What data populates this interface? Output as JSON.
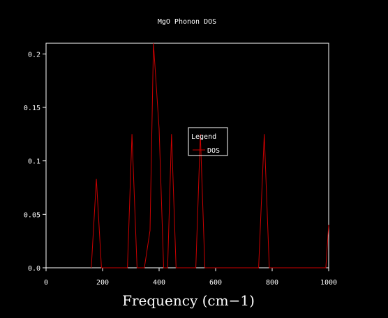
{
  "chart_data": {
    "type": "line",
    "title": "MgO Phonon DOS",
    "xlabel": "Frequency (cm−1)",
    "ylabel": "",
    "xlim": [
      0,
      1000
    ],
    "ylim": [
      0,
      0.21
    ],
    "x_ticks": [
      0,
      200,
      400,
      600,
      800,
      1000
    ],
    "x_tick_labels": [
      "0",
      "200",
      "400",
      "600",
      "800",
      "1000"
    ],
    "y_ticks": [
      0,
      0.05,
      0.1,
      0.15,
      0.2
    ],
    "y_tick_labels": [
      "0.0",
      "0.05",
      "0.1",
      "0.15",
      "0.2"
    ],
    "grid": false,
    "legend": {
      "title": "Legend",
      "position": "center"
    },
    "series": [
      {
        "name": "DOS",
        "color": "#cc0000",
        "points": [
          [
            160,
            0
          ],
          [
            178,
            0.083
          ],
          [
            196,
            0
          ],
          [
            288,
            0
          ],
          [
            304,
            0.125
          ],
          [
            322,
            0
          ],
          [
            348,
            0
          ],
          [
            368,
            0.035
          ],
          [
            380,
            0.21
          ],
          [
            400,
            0.13
          ],
          [
            416,
            0
          ],
          [
            430,
            0
          ],
          [
            444,
            0.125
          ],
          [
            460,
            0
          ],
          [
            530,
            0
          ],
          [
            546,
            0.125
          ],
          [
            562,
            0
          ],
          [
            752,
            0
          ],
          [
            772,
            0.125
          ],
          [
            790,
            0
          ],
          [
            990,
            0
          ],
          [
            1000,
            0.04
          ]
        ]
      }
    ]
  }
}
